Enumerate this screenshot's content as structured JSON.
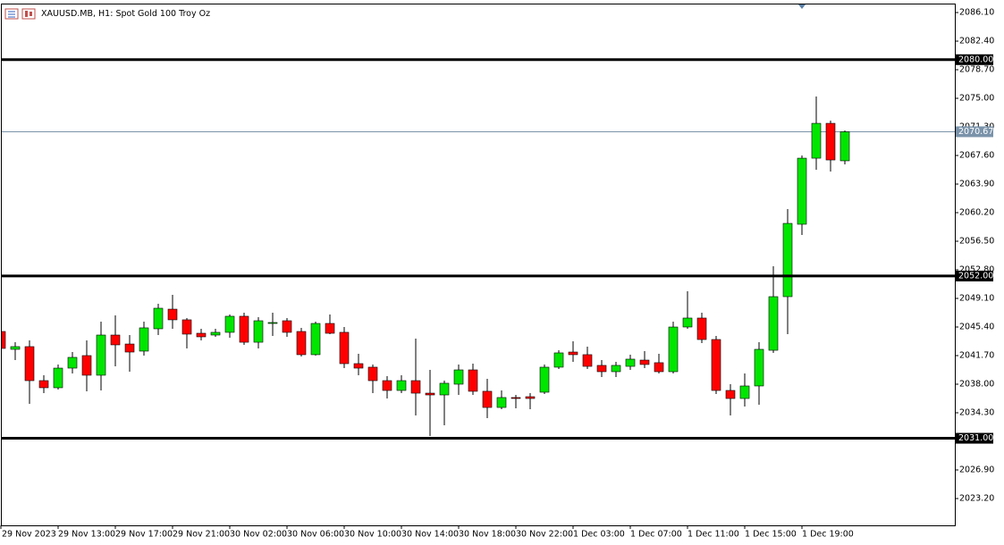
{
  "chart_data": {
    "type": "candlestick",
    "title": "XAUUSD.MB, H1:  Spot Gold 100 Troy Oz",
    "categories": [
      "29 Nov 2023",
      null,
      null,
      null,
      "29 Nov 13:00",
      null,
      null,
      null,
      "29 Nov 17:00",
      null,
      null,
      null,
      "29 Nov 21:00",
      null,
      null,
      null,
      "30 Nov 02:00",
      null,
      null,
      null,
      "30 Nov 06:00",
      null,
      null,
      null,
      "30 Nov 10:00",
      null,
      null,
      null,
      "30 Nov 14:00",
      null,
      null,
      null,
      "30 Nov 18:00",
      null,
      null,
      null,
      "30 Nov 22:00",
      null,
      null,
      null,
      "1 Dec 03:00",
      null,
      null,
      null,
      "1 Dec 07:00",
      null,
      null,
      null,
      "1 Dec 11:00",
      null,
      null,
      null,
      "1 Dec 15:00",
      null,
      null,
      null,
      "1 Dec 19:00",
      null,
      null,
      null
    ],
    "open": [
      2044.82,
      2042.51,
      2042.86,
      2038.46,
      2037.54,
      2040.08,
      2041.7,
      2039.16,
      2044.36,
      2043.2,
      2042.28,
      2045.17,
      2047.71,
      2046.33,
      2044.59,
      2044.36,
      2044.71,
      2046.79,
      2043.43,
      2045.86,
      2046.21,
      2044.82,
      2041.82,
      2045.86,
      2044.71,
      2040.66,
      2040.2,
      2038.46,
      2037.19,
      2038.46,
      2036.84,
      2036.61,
      2038.0,
      2039.85,
      2037.08,
      2034.99,
      2036.27,
      2036.38,
      2036.96,
      2040.2,
      2042.16,
      2041.82,
      2040.43,
      2039.62,
      2040.31,
      2041.12,
      2040.78,
      2039.62,
      2045.4,
      2046.56,
      2043.78,
      2037.19,
      2036.15,
      2037.77,
      2042.39,
      2049.33,
      2058.7,
      2067.25,
      2071.76,
      2066.91
    ],
    "high": [
      2044.82,
      2043.43,
      2043.67,
      2039.16,
      2040.55,
      2042.16,
      2043.67,
      2046.09,
      2046.9,
      2044.36,
      2046.09,
      2048.41,
      2049.56,
      2046.56,
      2045.17,
      2045.17,
      2047.02,
      2047.25,
      2046.67,
      2047.25,
      2046.56,
      2045.29,
      2046.09,
      2047.02,
      2045.4,
      2041.93,
      2040.55,
      2039.04,
      2039.16,
      2043.9,
      2039.85,
      2038.46,
      2040.55,
      2040.66,
      2038.69,
      2037.19,
      2036.61,
      2036.84,
      2040.55,
      2042.39,
      2043.55,
      2042.86,
      2041.12,
      2040.89,
      2041.82,
      2042.28,
      2041.93,
      2046.09,
      2050.03,
      2047.25,
      2044.24,
      2038.0,
      2039.39,
      2043.43,
      2053.26,
      2060.66,
      2067.6,
      2075.23,
      2072.11,
      2070.84
    ],
    "low": [
      2042.39,
      2041.12,
      2035.46,
      2036.84,
      2037.31,
      2039.39,
      2037.08,
      2037.19,
      2040.31,
      2039.62,
      2041.7,
      2044.36,
      2045.17,
      2042.63,
      2043.67,
      2044.13,
      2044.01,
      2043.09,
      2042.63,
      2044.24,
      2044.13,
      2041.59,
      2041.7,
      2044.48,
      2040.08,
      2039.16,
      2036.84,
      2036.15,
      2036.84,
      2033.95,
      2031.29,
      2032.68,
      2036.61,
      2036.61,
      2033.61,
      2034.76,
      2034.88,
      2034.76,
      2036.73,
      2039.97,
      2040.89,
      2039.97,
      2038.92,
      2038.92,
      2039.85,
      2040.08,
      2039.39,
      2039.39,
      2045.17,
      2043.32,
      2036.73,
      2033.95,
      2035.11,
      2035.34,
      2042.05,
      2044.48,
      2057.31,
      2065.75,
      2065.52,
      2066.44
    ],
    "close": [
      2042.63,
      2042.86,
      2038.46,
      2037.54,
      2040.08,
      2041.47,
      2039.16,
      2044.36,
      2043.09,
      2042.16,
      2045.29,
      2047.83,
      2046.33,
      2044.48,
      2044.13,
      2044.71,
      2046.79,
      2043.43,
      2046.21,
      2045.98,
      2044.71,
      2041.82,
      2045.86,
      2044.59,
      2040.66,
      2040.08,
      2038.46,
      2037.19,
      2038.46,
      2036.84,
      2036.61,
      2038.12,
      2039.85,
      2037.08,
      2034.99,
      2036.27,
      2036.15,
      2036.15,
      2040.2,
      2042.05,
      2041.82,
      2040.31,
      2039.62,
      2040.43,
      2041.24,
      2040.55,
      2039.62,
      2045.4,
      2046.56,
      2043.78,
      2037.19,
      2036.15,
      2037.77,
      2042.51,
      2049.33,
      2058.81,
      2067.25,
      2071.76,
      2067.02,
      2070.67
    ],
    "up_color": "#00e600",
    "down_color": "#ff0000",
    "ylim": [
      2019.73,
      2087.26
    ],
    "yticks": [
      {
        "value": 2023.2,
        "label": "2023.20"
      },
      {
        "value": 2026.9,
        "label": "2026.90"
      },
      {
        "value": 2034.3,
        "label": "2034.30"
      },
      {
        "value": 2038.0,
        "label": "2038.00"
      },
      {
        "value": 2041.7,
        "label": "2041.70"
      },
      {
        "value": 2045.4,
        "label": "2045.40"
      },
      {
        "value": 2049.1,
        "label": "2049.10"
      },
      {
        "value": 2052.8,
        "label": "2052.80"
      },
      {
        "value": 2056.5,
        "label": "2056.50"
      },
      {
        "value": 2060.2,
        "label": "2060.20"
      },
      {
        "value": 2063.9,
        "label": "2063.90"
      },
      {
        "value": 2067.6,
        "label": "2067.60"
      },
      {
        "value": 2071.3,
        "label": "2071.30"
      },
      {
        "value": 2075.0,
        "label": "2075.00"
      },
      {
        "value": 2078.7,
        "label": "2078.70"
      },
      {
        "value": 2082.4,
        "label": "2082.40"
      },
      {
        "value": 2086.1,
        "label": "2086.10"
      }
    ],
    "levels": [
      {
        "value": 2080.0,
        "label": "2080.00"
      },
      {
        "value": 2052.0,
        "label": "2052.00"
      },
      {
        "value": 2031.0,
        "label": "2031.00"
      }
    ],
    "last_price": {
      "value": 2070.67,
      "label": "2070.67"
    },
    "grid": false
  }
}
